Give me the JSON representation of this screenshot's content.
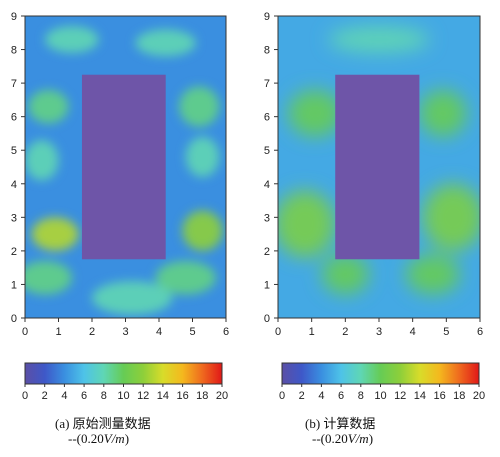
{
  "chart_data": [
    {
      "type": "heatmap",
      "caption": "(a) 原始测量数据",
      "unit_prefix": "--(0.20",
      "unit_var": "V/m",
      "unit_suffix": ")",
      "xlim": [
        0,
        6
      ],
      "ylim": [
        0,
        9
      ],
      "xticks": [
        "0",
        "1",
        "2",
        "3",
        "4",
        "5",
        "6"
      ],
      "yticks": [
        "0",
        "1",
        "2",
        "3",
        "4",
        "5",
        "6",
        "7",
        "8",
        "9"
      ],
      "obstacle": {
        "x": [
          1.7,
          4.2
        ],
        "y": [
          1.75,
          7.25
        ],
        "value": 2
      },
      "background_value": 4,
      "blobs": [
        {
          "x": 0.9,
          "y": 2.5,
          "value": 13,
          "rx": 0.7,
          "ry": 0.5
        },
        {
          "x": 5.3,
          "y": 2.6,
          "value": 12,
          "rx": 0.6,
          "ry": 0.6
        },
        {
          "x": 0.6,
          "y": 1.2,
          "value": 9,
          "rx": 0.8,
          "ry": 0.5
        },
        {
          "x": 4.8,
          "y": 1.2,
          "value": 9,
          "rx": 0.9,
          "ry": 0.5
        },
        {
          "x": 0.7,
          "y": 6.3,
          "value": 9,
          "rx": 0.6,
          "ry": 0.5
        },
        {
          "x": 0.5,
          "y": 4.7,
          "value": 8,
          "rx": 0.5,
          "ry": 0.6
        },
        {
          "x": 5.2,
          "y": 6.3,
          "value": 9,
          "rx": 0.6,
          "ry": 0.6
        },
        {
          "x": 5.3,
          "y": 4.8,
          "value": 8,
          "rx": 0.5,
          "ry": 0.6
        },
        {
          "x": 1.4,
          "y": 8.3,
          "value": 8,
          "rx": 0.8,
          "ry": 0.4
        },
        {
          "x": 4.2,
          "y": 8.2,
          "value": 8,
          "rx": 0.9,
          "ry": 0.4
        },
        {
          "x": 3.2,
          "y": 0.6,
          "value": 8,
          "rx": 1.2,
          "ry": 0.5
        }
      ],
      "colorbar": {
        "ticks": [
          "0",
          "2",
          "4",
          "6",
          "8",
          "10",
          "12",
          "14",
          "16",
          "18",
          "20"
        ],
        "range": [
          0,
          20
        ]
      }
    },
    {
      "type": "heatmap",
      "caption": "(b) 计算数据",
      "unit_prefix": "--(0.20",
      "unit_var": "V/m",
      "unit_suffix": ")",
      "xlim": [
        0,
        6
      ],
      "ylim": [
        0,
        9
      ],
      "xticks": [
        "0",
        "1",
        "2",
        "3",
        "4",
        "5",
        "6"
      ],
      "yticks": [
        "0",
        "1",
        "2",
        "3",
        "4",
        "5",
        "6",
        "7",
        "8",
        "9"
      ],
      "obstacle": {
        "x": [
          1.7,
          4.2
        ],
        "y": [
          1.75,
          7.25
        ],
        "value": 2
      },
      "background_value": 5,
      "blobs": [
        {
          "x": 0.8,
          "y": 2.8,
          "value": 11,
          "rx": 0.9,
          "ry": 1.0
        },
        {
          "x": 5.2,
          "y": 3.0,
          "value": 11,
          "rx": 0.9,
          "ry": 1.0
        },
        {
          "x": 1.1,
          "y": 6.1,
          "value": 10,
          "rx": 0.8,
          "ry": 0.7
        },
        {
          "x": 4.9,
          "y": 6.1,
          "value": 10,
          "rx": 0.7,
          "ry": 0.7
        },
        {
          "x": 2.0,
          "y": 1.3,
          "value": 10,
          "rx": 0.7,
          "ry": 0.6
        },
        {
          "x": 4.6,
          "y": 1.3,
          "value": 10,
          "rx": 0.8,
          "ry": 0.6
        },
        {
          "x": 3.0,
          "y": 8.3,
          "value": 8,
          "rx": 1.5,
          "ry": 0.4
        }
      ],
      "colorbar": {
        "ticks": [
          "0",
          "2",
          "4",
          "6",
          "8",
          "10",
          "12",
          "14",
          "16",
          "18",
          "20"
        ],
        "range": [
          0,
          20
        ]
      }
    }
  ],
  "colors": {
    "obstacle": "#6e55a8",
    "axis": "#333333",
    "scale": [
      "#5b4fa6",
      "#3e58c8",
      "#3a8fe0",
      "#4ec3e8",
      "#5fd6b4",
      "#66cc55",
      "#8ecf3a",
      "#d8dc2a",
      "#f4b81e",
      "#ef6a1e",
      "#e01818"
    ]
  }
}
